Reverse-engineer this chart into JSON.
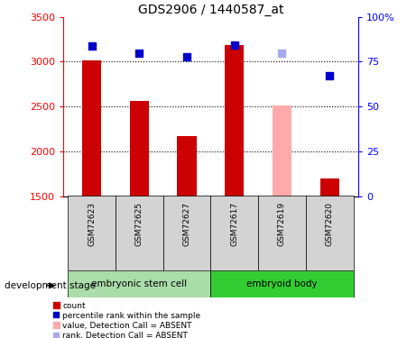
{
  "title": "GDS2906 / 1440587_at",
  "samples": [
    "GSM72623",
    "GSM72625",
    "GSM72627",
    "GSM72617",
    "GSM72619",
    "GSM72620"
  ],
  "bar_values": [
    3010,
    2560,
    2170,
    3190,
    2510,
    1700
  ],
  "bar_colors": [
    "#cc0000",
    "#cc0000",
    "#cc0000",
    "#cc0000",
    "#ffaaaa",
    "#cc0000"
  ],
  "rank_values": [
    3175,
    3100,
    3050,
    3190,
    3090,
    2840
  ],
  "rank_colors": [
    "#0000cc",
    "#0000cc",
    "#0000cc",
    "#0000cc",
    "#aaaaee",
    "#0000cc"
  ],
  "bar_base": 1500,
  "ylim_left": [
    1500,
    3500
  ],
  "ylim_right": [
    0,
    100
  ],
  "right_ticks": [
    0,
    25,
    50,
    75,
    100
  ],
  "right_ticklabels": [
    "0",
    "25",
    "50",
    "75",
    "100%"
  ],
  "left_ticks": [
    1500,
    2000,
    2500,
    3000,
    3500
  ],
  "gridlines": [
    2000,
    2500,
    3000
  ],
  "group1_label": "embryonic stem cell",
  "group2_label": "embryoid body",
  "dev_stage_label": "development stage",
  "group1_indices": [
    0,
    1,
    2
  ],
  "group2_indices": [
    3,
    4,
    5
  ],
  "group1_color": "#aaddaa",
  "group2_color": "#33cc33",
  "sample_box_color": "#d3d3d3",
  "bar_width": 0.4,
  "legend_items": [
    {
      "label": "count",
      "color": "#cc0000",
      "type": "bar"
    },
    {
      "label": "percentile rank within the sample",
      "color": "#0000cc",
      "type": "square"
    },
    {
      "label": "value, Detection Call = ABSENT",
      "color": "#ffaaaa",
      "type": "bar"
    },
    {
      "label": "rank, Detection Call = ABSENT",
      "color": "#aaaaee",
      "type": "square"
    }
  ]
}
